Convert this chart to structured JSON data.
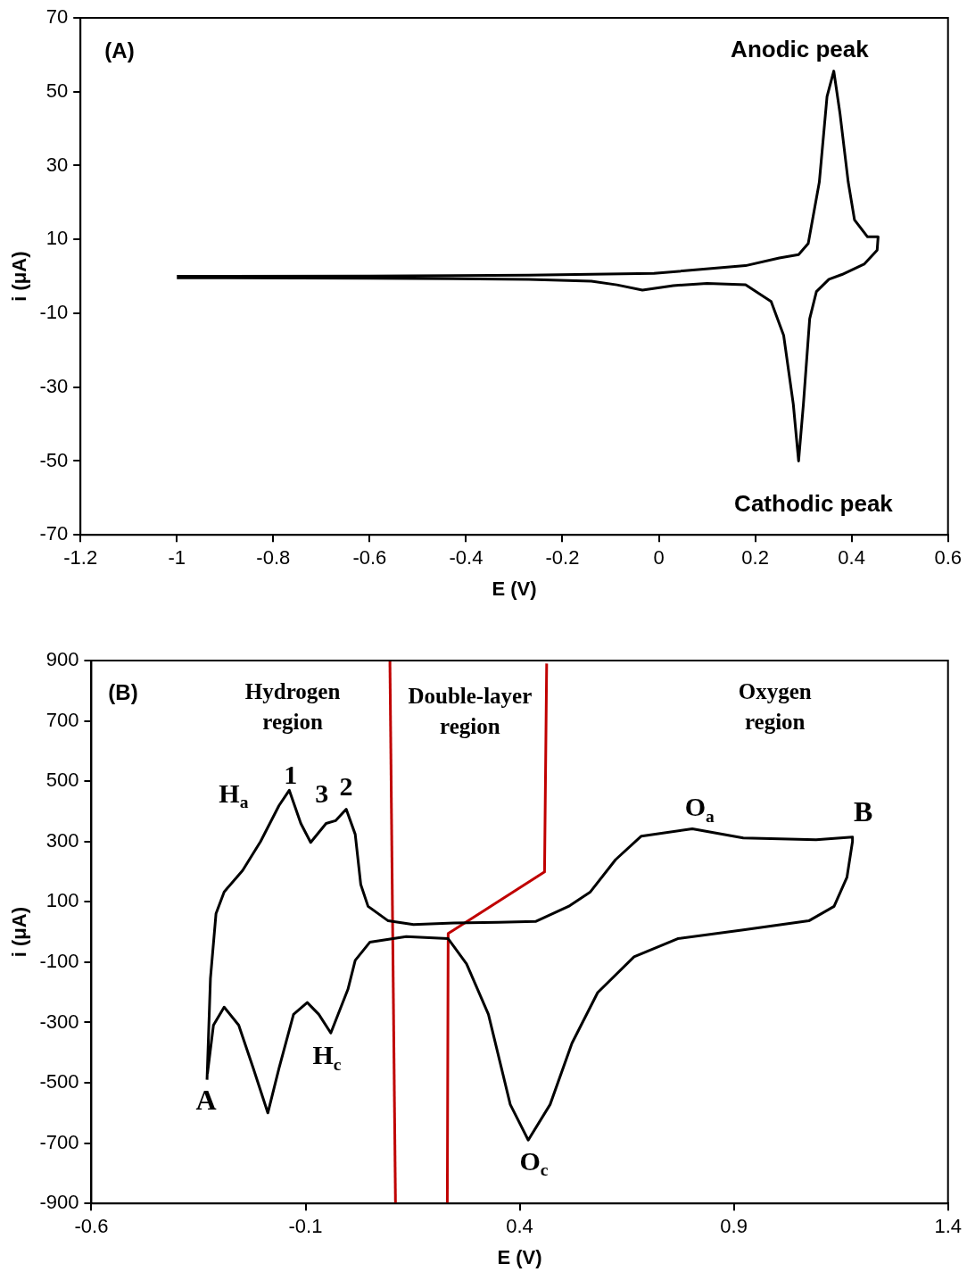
{
  "chart_data": [
    {
      "type": "line",
      "xlabel": "E (V)",
      "ylabel": "i (μA)",
      "xlim": [
        -1.2,
        0.6
      ],
      "xticks": [
        -1.2,
        -1,
        -0.8,
        -0.6,
        -0.4,
        -0.2,
        0,
        0.2,
        0.4,
        0.6
      ],
      "ylim": [
        -70,
        70
      ],
      "yticks": [
        -70,
        -50,
        -30,
        -10,
        10,
        30,
        50,
        70
      ],
      "grid": false,
      "legend": false,
      "marker": "none",
      "annotations": [
        "(A)",
        "Anodic peak",
        "Cathodic peak"
      ],
      "series": [
        {
          "color": "#000000",
          "x": [
            -1,
            -0.6,
            -0.27,
            -0.01,
            0.18,
            0.25,
            0.29,
            0.31,
            0.333,
            0.349,
            0.363,
            0.376,
            0.393,
            0.406,
            0.433,
            0.455,
            0.453,
            0.426,
            0.38,
            0.353,
            0.327,
            0.313,
            0.3,
            0.29,
            0.279,
            0.259,
            0.233,
            0.18,
            0.1,
            0.03,
            -0.034,
            -0.087,
            -0.14,
            -0.27,
            -0.6,
            -1
          ],
          "values": [
            0,
            0.1,
            0.3,
            0.8,
            2.9,
            5,
            5.9,
            8.9,
            25.5,
            48.7,
            55.6,
            44,
            25.5,
            15.3,
            10.7,
            10.7,
            7.1,
            3.3,
            0.5,
            -0.8,
            -4.1,
            -11.5,
            -34.6,
            -50,
            -34.6,
            -16,
            -6.8,
            -2.3,
            -1.9,
            -2.5,
            -3.7,
            -2.3,
            -1.3,
            -0.8,
            -0.5,
            -0.4
          ]
        }
      ]
    },
    {
      "type": "line",
      "xlabel": "E (V)",
      "ylabel": "i (μA)",
      "xlim": [
        -0.6,
        1.4
      ],
      "xticks": [
        -0.6,
        -0.1,
        0.4,
        0.9,
        1.4
      ],
      "ylim": [
        -900,
        900
      ],
      "yticks": [
        -900,
        -700,
        -500,
        -300,
        -100,
        100,
        300,
        500,
        700,
        900
      ],
      "grid": false,
      "legend": false,
      "marker": "none",
      "annotations": [
        "(B)",
        "Hydrogen region",
        "Double-layer region",
        "Oxygen region",
        "H$_{a}$",
        "1",
        "3",
        "2",
        "H$_{c}$",
        "A",
        "B",
        "O$_{a}$",
        "O$_{c}$"
      ],
      "series": [
        {
          "color": "#000000",
          "x": [
            -0.33,
            -0.322,
            -0.309,
            -0.29,
            -0.247,
            -0.205,
            -0.162,
            -0.138,
            -0.111,
            -0.088,
            -0.052,
            -0.03,
            -0.005,
            0.016,
            0.029,
            0.046,
            0.093,
            0.152,
            0.246,
            0.35,
            0.437,
            0.514,
            0.565,
            0.624,
            0.684,
            0.803,
            0.922,
            1.092,
            1.177,
            1.177,
            1.164,
            1.134,
            1.075,
            0.922,
            0.769,
            0.667,
            0.582,
            0.522,
            0.471,
            0.42,
            0.378,
            0.327,
            0.276,
            0.233,
            0.135,
            0.05,
            0.016,
            -0.001,
            -0.041,
            -0.069,
            -0.096,
            -0.128,
            -0.162,
            -0.188,
            -0.222,
            -0.256,
            -0.29,
            -0.315,
            -0.329
          ],
          "values": [
            -490,
            -154,
            61,
            133,
            204,
            300,
            419,
            470,
            360,
            297,
            360,
            369,
            407,
            324,
            157,
            85,
            37,
            25,
            30,
            32,
            35,
            85,
            133,
            240,
            318,
            342,
            312,
            306,
            315,
            300,
            181,
            85,
            37,
            7,
            -22,
            -82,
            -201,
            -369,
            -572,
            -690,
            -572,
            -273,
            -106,
            -22,
            -15,
            -34,
            -94,
            -190,
            -335,
            -273,
            -234,
            -273,
            -452,
            -600,
            -452,
            -309,
            -249,
            -309,
            -470
          ]
        },
        {
          "type": "line",
          "color": "#c00000",
          "x": [
            0.097,
            0.11
          ],
          "values": [
            900,
            -900
          ]
        },
        {
          "type": "line",
          "color": "#c00000",
          "x": [
            0.463,
            0.458,
            0.233,
            0.231
          ],
          "values": [
            890,
            199,
            -5,
            -900
          ]
        }
      ]
    }
  ]
}
